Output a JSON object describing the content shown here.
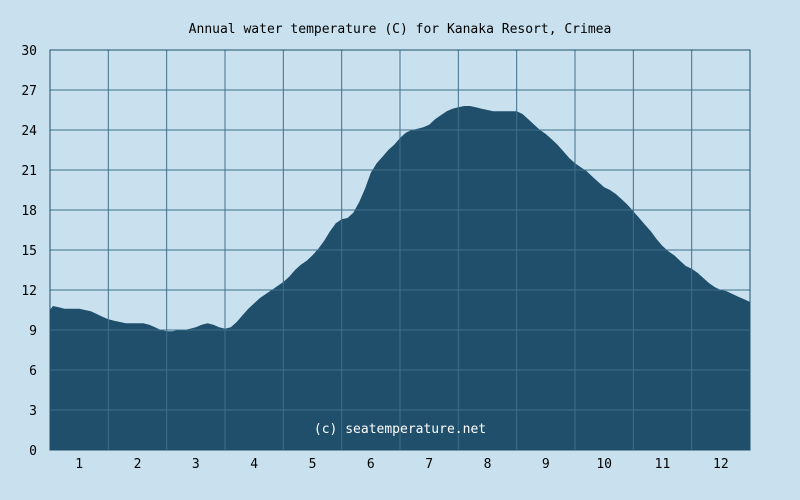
{
  "chart_data": {
    "type": "area",
    "title": "Annual water temperature (C) for Kanaka Resort, Crimea",
    "xlabel": "",
    "ylabel": "",
    "ylim": [
      0,
      30
    ],
    "yticks": [
      0,
      3,
      6,
      9,
      12,
      15,
      18,
      21,
      24,
      27,
      30
    ],
    "xlim": [
      0.5,
      12.5
    ],
    "xticks": [
      "1",
      "2",
      "3",
      "4",
      "5",
      "6",
      "7",
      "8",
      "9",
      "10",
      "11",
      "12"
    ],
    "grid": true,
    "watermark": "(c) seatemperature.net",
    "series": [
      {
        "x": [
          0.5,
          0.55,
          0.65,
          0.75,
          0.9,
          1.0,
          1.1,
          1.2,
          1.3,
          1.4,
          1.5,
          1.6,
          1.7,
          1.8,
          1.9,
          2.0,
          2.1,
          2.2,
          2.3,
          2.4,
          2.5,
          2.6,
          2.7,
          2.8,
          2.9,
          3.0,
          3.1,
          3.2,
          3.3,
          3.4,
          3.5,
          3.6,
          3.7,
          3.8,
          3.9,
          4.0,
          4.1,
          4.2,
          4.3,
          4.4,
          4.5,
          4.6,
          4.7,
          4.8,
          4.9,
          5.0,
          5.1,
          5.2,
          5.3,
          5.4,
          5.5,
          5.6,
          5.7,
          5.8,
          5.9,
          6.0,
          6.1,
          6.2,
          6.3,
          6.4,
          6.5,
          6.6,
          6.7,
          6.8,
          6.9,
          7.0,
          7.1,
          7.2,
          7.3,
          7.4,
          7.5,
          7.6,
          7.7,
          7.8,
          7.9,
          8.0,
          8.1,
          8.2,
          8.3,
          8.4,
          8.5,
          8.6,
          8.7,
          8.8,
          8.9,
          9.0,
          9.1,
          9.2,
          9.3,
          9.4,
          9.5,
          9.6,
          9.7,
          9.8,
          9.9,
          10.0,
          10.1,
          10.2,
          10.3,
          10.4,
          10.5,
          10.6,
          10.7,
          10.8,
          10.9,
          11.0,
          11.1,
          11.2,
          11.3,
          11.4,
          11.5,
          11.6,
          11.7,
          11.8,
          11.9,
          12.0,
          12.1,
          12.2,
          12.3,
          12.4,
          12.5
        ],
        "values": [
          10.5,
          10.8,
          10.7,
          10.6,
          10.6,
          10.6,
          10.5,
          10.4,
          10.2,
          10.0,
          9.8,
          9.7,
          9.6,
          9.5,
          9.5,
          9.5,
          9.5,
          9.4,
          9.2,
          9.0,
          8.9,
          8.9,
          9.0,
          9.0,
          9.1,
          9.2,
          9.4,
          9.5,
          9.4,
          9.2,
          9.1,
          9.2,
          9.6,
          10.1,
          10.6,
          11.0,
          11.4,
          11.7,
          12.0,
          12.3,
          12.6,
          13.0,
          13.5,
          13.9,
          14.2,
          14.6,
          15.1,
          15.7,
          16.4,
          17.0,
          17.3,
          17.4,
          17.8,
          18.6,
          19.6,
          20.8,
          21.5,
          22.0,
          22.5,
          22.9,
          23.4,
          23.8,
          24.0,
          24.1,
          24.2,
          24.4,
          24.8,
          25.1,
          25.4,
          25.6,
          25.7,
          25.8,
          25.8,
          25.7,
          25.6,
          25.5,
          25.4,
          25.4,
          25.4,
          25.4,
          25.4,
          25.2,
          24.8,
          24.4,
          24.0,
          23.7,
          23.3,
          22.9,
          22.4,
          21.9,
          21.5,
          21.2,
          20.9,
          20.5,
          20.1,
          19.7,
          19.5,
          19.2,
          18.8,
          18.4,
          17.9,
          17.4,
          16.9,
          16.4,
          15.8,
          15.3,
          14.9,
          14.6,
          14.2,
          13.8,
          13.6,
          13.3,
          12.9,
          12.5,
          12.2,
          12.0,
          11.9,
          11.7,
          11.5,
          11.3,
          11.1
        ]
      }
    ],
    "colors": {
      "background": "#c9e1ee",
      "fill": "#1f4f6b",
      "grid": "#3f6f8a",
      "frame": "#1f4f6b",
      "text": "#000000",
      "watermark": "#ffffff"
    }
  }
}
